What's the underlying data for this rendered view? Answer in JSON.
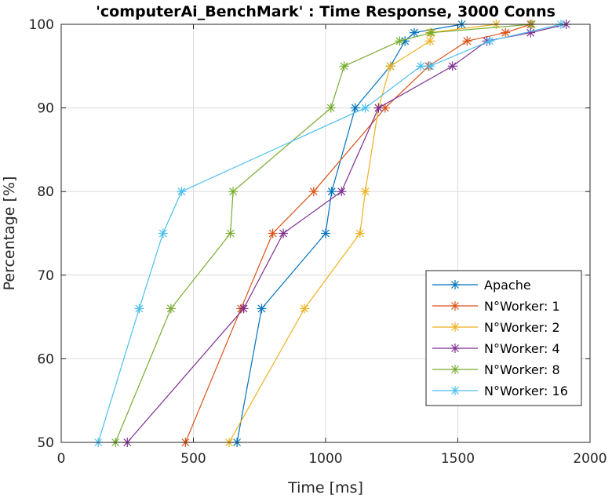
{
  "chart_data": {
    "type": "line",
    "title": "'computerAi_BenchMark' : Time Response, 3000 Conns",
    "xlabel": "Time [ms]",
    "ylabel": "Percentage [%]",
    "xlim": [
      0,
      2000
    ],
    "ylim": [
      50,
      100
    ],
    "xticks": [
      0,
      500,
      1000,
      1500,
      2000
    ],
    "yticks": [
      50,
      60,
      70,
      80,
      90,
      100
    ],
    "grid": true,
    "legend_position": "bottom-right",
    "marker": "asterisk",
    "series": [
      {
        "name": "Apache",
        "color": "#0072BD",
        "points": [
          [
            665,
            50
          ],
          [
            758,
            66
          ],
          [
            1000,
            75
          ],
          [
            1023,
            80
          ],
          [
            1112,
            90
          ],
          [
            1245,
            95
          ],
          [
            1300,
            98
          ],
          [
            1335,
            99
          ],
          [
            1515,
            100
          ]
        ]
      },
      {
        "name": "N°Worker: 1",
        "color": "#D95319",
        "points": [
          [
            470,
            50
          ],
          [
            680,
            66
          ],
          [
            800,
            75
          ],
          [
            955,
            80
          ],
          [
            1225,
            90
          ],
          [
            1390,
            95
          ],
          [
            1535,
            98
          ],
          [
            1680,
            99
          ],
          [
            1775,
            100
          ]
        ]
      },
      {
        "name": "N°Worker: 2",
        "color": "#EDB120",
        "points": [
          [
            635,
            50
          ],
          [
            920,
            66
          ],
          [
            1130,
            75
          ],
          [
            1150,
            80
          ],
          [
            1200,
            90
          ],
          [
            1245,
            95
          ],
          [
            1395,
            98
          ],
          [
            1395,
            99
          ],
          [
            1645,
            100
          ]
        ]
      },
      {
        "name": "N°Worker: 4",
        "color": "#7E2F8E",
        "points": [
          [
            250,
            50
          ],
          [
            690,
            66
          ],
          [
            840,
            75
          ],
          [
            1060,
            80
          ],
          [
            1200,
            90
          ],
          [
            1480,
            95
          ],
          [
            1610,
            98
          ],
          [
            1775,
            99
          ],
          [
            1910,
            100
          ]
        ]
      },
      {
        "name": "N°Worker: 8",
        "color": "#77AC30",
        "points": [
          [
            205,
            50
          ],
          [
            415,
            66
          ],
          [
            640,
            75
          ],
          [
            650,
            80
          ],
          [
            1020,
            90
          ],
          [
            1070,
            95
          ],
          [
            1280,
            98
          ],
          [
            1400,
            99
          ],
          [
            1780,
            100
          ]
        ]
      },
      {
        "name": "N°Worker: 16",
        "color": "#4DBEEE",
        "points": [
          [
            140,
            50
          ],
          [
            295,
            66
          ],
          [
            385,
            75
          ],
          [
            455,
            80
          ],
          [
            1150,
            90
          ],
          [
            1360,
            95
          ],
          [
            1395,
            95
          ],
          [
            1620,
            98
          ],
          [
            1890,
            100
          ]
        ]
      }
    ]
  }
}
